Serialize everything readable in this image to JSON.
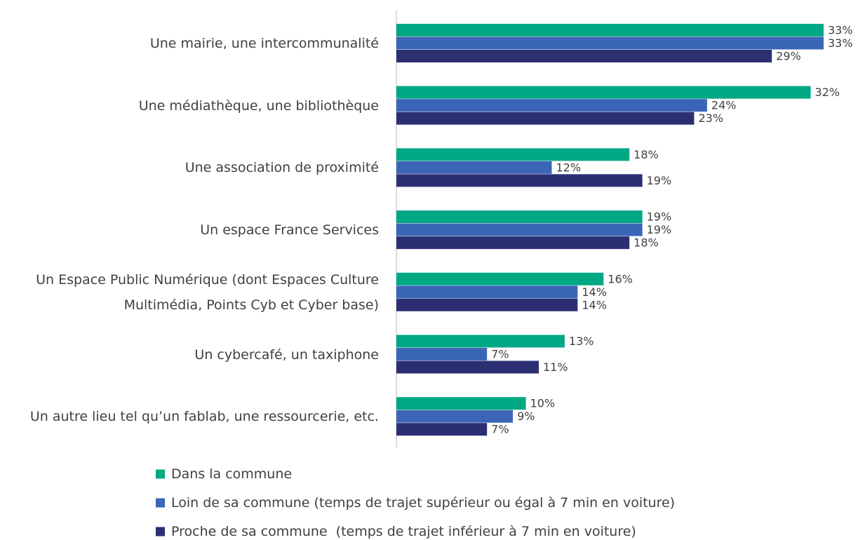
{
  "chart_data": {
    "type": "bar",
    "orientation": "horizontal",
    "categories": [
      "Une mairie, une intercommunalité",
      "Une médiathèque, une bibliothèque",
      "Une association de proximité",
      "Un espace France Services",
      "Un Espace Public Numérique (dont Espaces Culture\nMultimédia, Points Cyb et Cyber base)",
      "Un cybercafé, un taxiphone",
      "Un autre lieu tel qu’un fablab, une ressourcerie, etc."
    ],
    "series": [
      {
        "name": "Dans la commune",
        "color": "#00a884",
        "values": [
          33,
          32,
          18,
          19,
          16,
          13,
          10
        ],
        "value_labels": [
          "33%",
          "32%",
          "18%",
          "19%",
          "16%",
          "13%",
          "10%"
        ]
      },
      {
        "name": "Loin de sa commune (temps de trajet supérieur ou égal à 7 min en voiture)",
        "color": "#3b66b7",
        "values": [
          33,
          24,
          12,
          19,
          14,
          7,
          9
        ],
        "value_labels": [
          "33%",
          "24%",
          "12%",
          "19%",
          "14%",
          "7%",
          "9%"
        ]
      },
      {
        "name": "Proche de sa commune  (temps de trajet inférieur à 7 min en voiture)",
        "color": "#2b2f72",
        "values": [
          29,
          23,
          19,
          18,
          14,
          11,
          7
        ],
        "value_labels": [
          "29%",
          "23%",
          "19%",
          "18%",
          "14%",
          "11%",
          "7%"
        ]
      }
    ]
  }
}
